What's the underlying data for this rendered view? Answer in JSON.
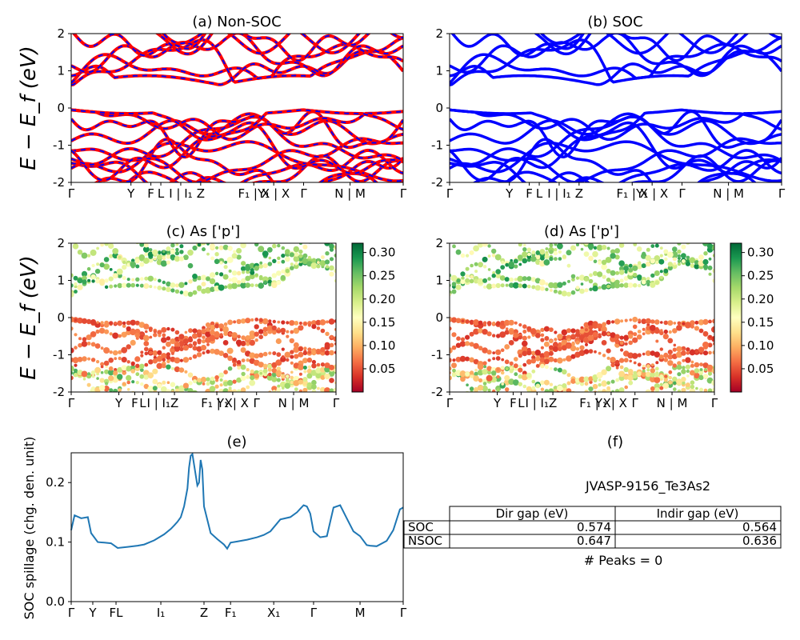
{
  "figure": {
    "ylabel_ab": "E − E_f (eV)",
    "ylabel_cd": "E − E_f (eV)",
    "kpath_labels_ab": [
      "Γ",
      "Y",
      "F",
      "L",
      "I | I₁",
      "Z",
      "F₁ | X",
      "Y₁ | X",
      "Γ",
      "N | M",
      "Γ"
    ],
    "kpath_labels_e": [
      "Γ",
      "Y",
      "FL",
      "I₁",
      "Z",
      "F₁",
      "X₁",
      "Γ",
      "M",
      "Γ"
    ]
  },
  "chart_data": [
    {
      "panel": "a",
      "type": "line",
      "title": "(a) Non-SOC",
      "ylim": [
        -2,
        2
      ],
      "yticks": [
        -2,
        -1,
        0,
        1,
        2
      ],
      "series": [
        {
          "role": "bands",
          "color": "#ff0000",
          "style": "solid"
        },
        {
          "role": "bands",
          "color": "#0000ff",
          "style": "dashed"
        }
      ]
    },
    {
      "panel": "b",
      "type": "line",
      "title": "(b) SOC",
      "ylim": [
        -2,
        2
      ],
      "yticks": [
        -2,
        -1,
        0,
        1,
        2
      ],
      "series": [
        {
          "role": "bands",
          "color": "#0000ff",
          "style": "solid"
        }
      ]
    },
    {
      "panel": "c",
      "type": "scatter",
      "title": "(c)  As ['p']",
      "ylim": [
        -2,
        2
      ],
      "yticks": [
        -2,
        -1,
        0,
        1,
        2
      ],
      "colorbar": {
        "colormap": "RdYlGn",
        "ticks": [
          "0.05",
          "0.10",
          "0.15",
          "0.20",
          "0.25",
          "0.30"
        ],
        "range": [
          0.0,
          0.32
        ]
      }
    },
    {
      "panel": "d",
      "type": "scatter",
      "title": "(d) As ['p']",
      "ylim": [
        -2,
        2
      ],
      "yticks": [
        -2,
        -1,
        0,
        1,
        2
      ],
      "colorbar": {
        "colormap": "RdYlGn",
        "ticks": [
          "0.05",
          "0.10",
          "0.15",
          "0.20",
          "0.25",
          "0.30"
        ],
        "range": [
          0.0,
          0.32
        ]
      }
    },
    {
      "panel": "e",
      "type": "line",
      "title": "(e)",
      "ylabel": "SOC spillage (chg. den. unit)",
      "ylim": [
        0.0,
        0.25
      ],
      "yticks": [
        "0.0",
        "0.1",
        "0.2"
      ],
      "series": [
        {
          "color": "#1f77b4",
          "x": [
            0.0,
            0.01,
            0.03,
            0.05,
            0.06,
            0.08,
            0.1,
            0.12,
            0.14,
            0.17,
            0.2,
            0.22,
            0.25,
            0.28,
            0.3,
            0.31,
            0.32,
            0.33,
            0.34,
            0.35,
            0.355,
            0.36,
            0.365,
            0.37,
            0.38,
            0.385,
            0.39,
            0.395,
            0.4,
            0.42,
            0.44,
            0.46,
            0.47,
            0.48,
            0.5,
            0.53,
            0.56,
            0.58,
            0.6,
            0.63,
            0.66,
            0.68,
            0.7,
            0.71,
            0.72,
            0.73,
            0.75,
            0.77,
            0.79,
            0.81,
            0.83,
            0.85,
            0.87,
            0.89,
            0.9,
            0.92,
            0.95,
            0.97,
            0.99,
            1.0
          ],
          "y": [
            0.12,
            0.145,
            0.14,
            0.142,
            0.115,
            0.1,
            0.099,
            0.098,
            0.09,
            0.092,
            0.094,
            0.096,
            0.103,
            0.113,
            0.122,
            0.128,
            0.134,
            0.142,
            0.16,
            0.19,
            0.225,
            0.245,
            0.248,
            0.23,
            0.195,
            0.2,
            0.238,
            0.222,
            0.16,
            0.115,
            0.105,
            0.096,
            0.089,
            0.099,
            0.101,
            0.104,
            0.108,
            0.112,
            0.118,
            0.138,
            0.142,
            0.15,
            0.162,
            0.16,
            0.148,
            0.118,
            0.108,
            0.11,
            0.158,
            0.162,
            0.14,
            0.118,
            0.11,
            0.095,
            0.094,
            0.093,
            0.102,
            0.12,
            0.155,
            0.158
          ]
        }
      ]
    },
    {
      "panel": "f",
      "type": "table",
      "title": "(f)",
      "caption": "JVASP-9156_Te3As2",
      "columns": [
        "",
        "Dir gap (eV)",
        "Indir gap (eV)"
      ],
      "rows": [
        [
          "SOC",
          "0.574",
          "0.564"
        ],
        [
          "NSOC",
          "0.647",
          "0.636"
        ]
      ],
      "footer": "# Peaks = 0"
    }
  ]
}
